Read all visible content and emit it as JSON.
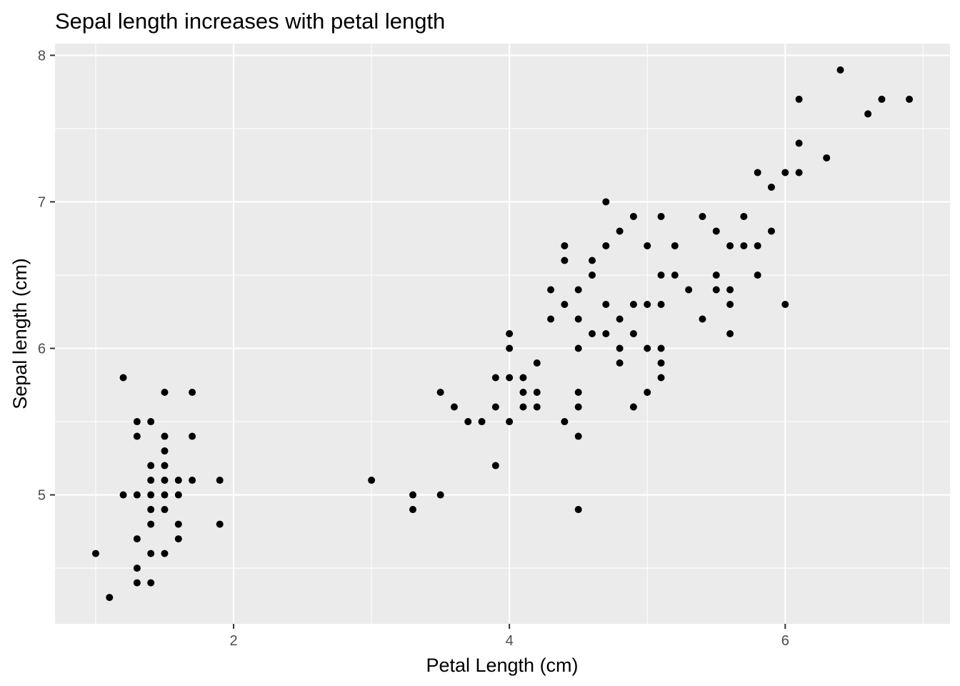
{
  "chart_data": {
    "type": "scatter",
    "title": "Sepal length increases with petal length",
    "xlabel": "Petal Length (cm)",
    "ylabel": "Sepal length (cm)",
    "xlim": [
      0.705,
      7.195
    ],
    "ylim": [
      4.12,
      8.08
    ],
    "x_ticks": [
      2,
      4,
      6
    ],
    "y_ticks": [
      5,
      6,
      7,
      8
    ],
    "x_minor": [
      1,
      3,
      5,
      7
    ],
    "y_minor": [
      4.5,
      5.5,
      6.5,
      7.5
    ],
    "grid": true,
    "colors": {
      "panel": "#ebebeb",
      "point": "#000000",
      "grid": "#ffffff"
    },
    "points": [
      [
        1.0,
        4.6
      ],
      [
        1.1,
        4.3
      ],
      [
        1.2,
        5.8
      ],
      [
        1.2,
        5.0
      ],
      [
        1.3,
        5.5
      ],
      [
        1.3,
        5.4
      ],
      [
        1.3,
        5.0
      ],
      [
        1.3,
        4.7
      ],
      [
        1.3,
        4.5
      ],
      [
        1.3,
        4.4
      ],
      [
        1.4,
        5.5
      ],
      [
        1.4,
        5.2
      ],
      [
        1.4,
        5.1
      ],
      [
        1.4,
        5.0
      ],
      [
        1.4,
        4.9
      ],
      [
        1.4,
        4.8
      ],
      [
        1.4,
        4.6
      ],
      [
        1.4,
        4.4
      ],
      [
        1.5,
        5.7
      ],
      [
        1.5,
        5.4
      ],
      [
        1.5,
        5.3
      ],
      [
        1.5,
        5.2
      ],
      [
        1.5,
        5.1
      ],
      [
        1.5,
        5.0
      ],
      [
        1.5,
        4.9
      ],
      [
        1.5,
        4.6
      ],
      [
        1.6,
        5.1
      ],
      [
        1.6,
        5.0
      ],
      [
        1.6,
        4.8
      ],
      [
        1.6,
        4.7
      ],
      [
        1.7,
        5.7
      ],
      [
        1.7,
        5.4
      ],
      [
        1.7,
        5.1
      ],
      [
        1.9,
        5.1
      ],
      [
        1.9,
        4.8
      ],
      [
        3.0,
        5.1
      ],
      [
        3.3,
        5.0
      ],
      [
        3.3,
        4.9
      ],
      [
        3.5,
        5.7
      ],
      [
        3.5,
        5.0
      ],
      [
        3.6,
        5.6
      ],
      [
        3.7,
        5.5
      ],
      [
        3.8,
        5.5
      ],
      [
        3.9,
        5.8
      ],
      [
        3.9,
        5.6
      ],
      [
        3.9,
        5.2
      ],
      [
        4.0,
        6.1
      ],
      [
        4.0,
        6.0
      ],
      [
        4.0,
        5.8
      ],
      [
        4.0,
        5.5
      ],
      [
        4.1,
        5.8
      ],
      [
        4.1,
        5.7
      ],
      [
        4.1,
        5.6
      ],
      [
        4.2,
        5.9
      ],
      [
        4.2,
        5.7
      ],
      [
        4.2,
        5.6
      ],
      [
        4.3,
        6.4
      ],
      [
        4.3,
        6.2
      ],
      [
        4.4,
        6.7
      ],
      [
        4.4,
        6.6
      ],
      [
        4.4,
        6.3
      ],
      [
        4.4,
        5.5
      ],
      [
        4.5,
        6.4
      ],
      [
        4.5,
        6.2
      ],
      [
        4.5,
        6.0
      ],
      [
        4.5,
        5.7
      ],
      [
        4.5,
        5.6
      ],
      [
        4.5,
        5.4
      ],
      [
        4.5,
        4.9
      ],
      [
        4.6,
        6.6
      ],
      [
        4.6,
        6.5
      ],
      [
        4.6,
        6.1
      ],
      [
        4.7,
        7.0
      ],
      [
        4.7,
        6.7
      ],
      [
        4.7,
        6.3
      ],
      [
        4.7,
        6.1
      ],
      [
        4.8,
        6.8
      ],
      [
        4.8,
        6.2
      ],
      [
        4.8,
        6.0
      ],
      [
        4.8,
        5.9
      ],
      [
        4.9,
        6.9
      ],
      [
        4.9,
        6.3
      ],
      [
        4.9,
        6.1
      ],
      [
        4.9,
        5.6
      ],
      [
        5.0,
        6.7
      ],
      [
        5.0,
        6.3
      ],
      [
        5.0,
        6.0
      ],
      [
        5.0,
        5.7
      ],
      [
        5.1,
        6.9
      ],
      [
        5.1,
        6.5
      ],
      [
        5.1,
        6.3
      ],
      [
        5.1,
        6.0
      ],
      [
        5.1,
        5.9
      ],
      [
        5.1,
        5.8
      ],
      [
        5.2,
        6.7
      ],
      [
        5.2,
        6.5
      ],
      [
        5.3,
        6.4
      ],
      [
        5.4,
        6.9
      ],
      [
        5.4,
        6.2
      ],
      [
        5.5,
        6.8
      ],
      [
        5.5,
        6.5
      ],
      [
        5.5,
        6.4
      ],
      [
        5.6,
        6.7
      ],
      [
        5.6,
        6.4
      ],
      [
        5.6,
        6.3
      ],
      [
        5.6,
        6.1
      ],
      [
        5.7,
        6.9
      ],
      [
        5.7,
        6.7
      ],
      [
        5.8,
        7.2
      ],
      [
        5.8,
        6.7
      ],
      [
        5.8,
        6.5
      ],
      [
        5.9,
        7.1
      ],
      [
        5.9,
        6.8
      ],
      [
        6.0,
        7.2
      ],
      [
        6.0,
        6.3
      ],
      [
        6.1,
        7.7
      ],
      [
        6.1,
        7.4
      ],
      [
        6.1,
        7.2
      ],
      [
        6.3,
        7.3
      ],
      [
        6.4,
        7.9
      ],
      [
        6.6,
        7.6
      ],
      [
        6.7,
        7.7
      ],
      [
        6.9,
        7.7
      ]
    ]
  }
}
